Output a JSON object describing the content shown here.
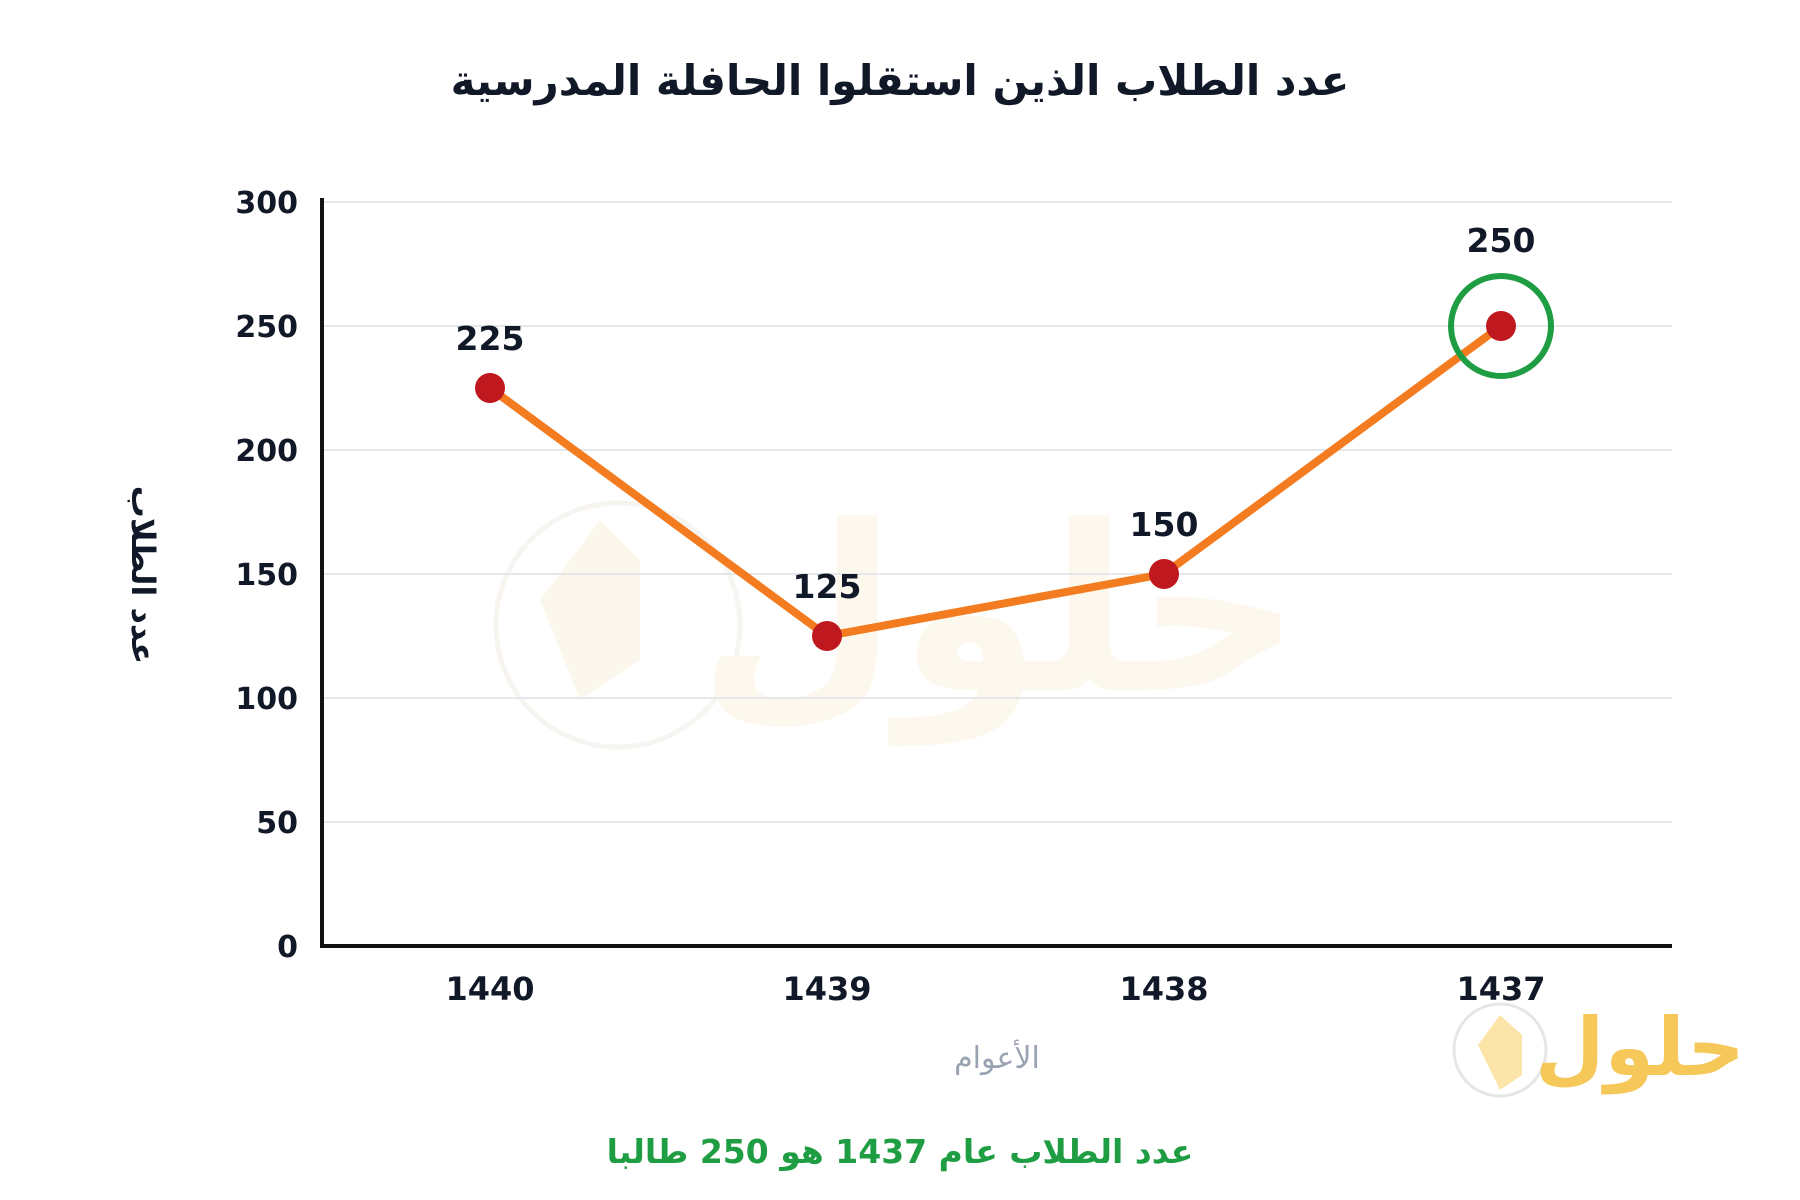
{
  "chart_data": {
    "type": "line",
    "title": "عدد الطلاب الذين استقلوا الحافلة المدرسية",
    "xlabel": "الأعوام",
    "ylabel": "عدد الطلاب",
    "categories": [
      "1440",
      "1439",
      "1438",
      "1437"
    ],
    "values": [
      225,
      125,
      150,
      250
    ],
    "yticks": [
      "0",
      "50",
      "100",
      "150",
      "200",
      "250",
      "300"
    ],
    "ylim": [
      0,
      300
    ],
    "grid": true,
    "highlight_category": "1437",
    "colors": {
      "line": "#f47c20",
      "point": "#c0181f",
      "highlight": "#1f9d43",
      "caption": "#1f9d43"
    }
  },
  "caption": "عدد الطلاب عام 1437 هو 250 طالبا",
  "watermark": {
    "text": "حلول",
    "icon": "book-logo-icon"
  }
}
